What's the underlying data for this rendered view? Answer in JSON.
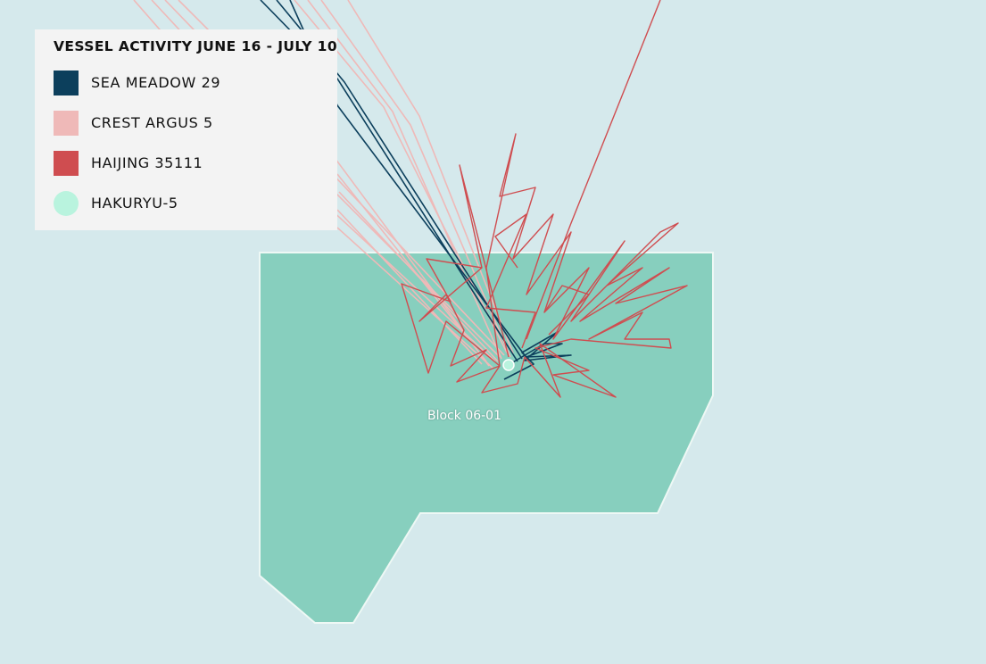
{
  "map": {
    "colors": {
      "sea": "#d5e9ec",
      "block_fill": "#87cfbe",
      "block_stroke": "#eef8f5"
    },
    "block_label": "Block 06-01"
  },
  "legend": {
    "title": "VESSEL ACTIVITY JUNE 16 - JULY 10",
    "items": [
      {
        "label": "SEA MEADOW 29",
        "color": "#0c3f5c",
        "shape": "square-icon"
      },
      {
        "label": "CREST ARGUS 5",
        "color": "#efb9b8",
        "shape": "square-icon"
      },
      {
        "label": "HAIJING 35111",
        "color": "#cf4d50",
        "shape": "square-icon"
      },
      {
        "label": "HAKURYU-5",
        "color": "#b9f3de",
        "shape": "circle-icon"
      }
    ]
  }
}
